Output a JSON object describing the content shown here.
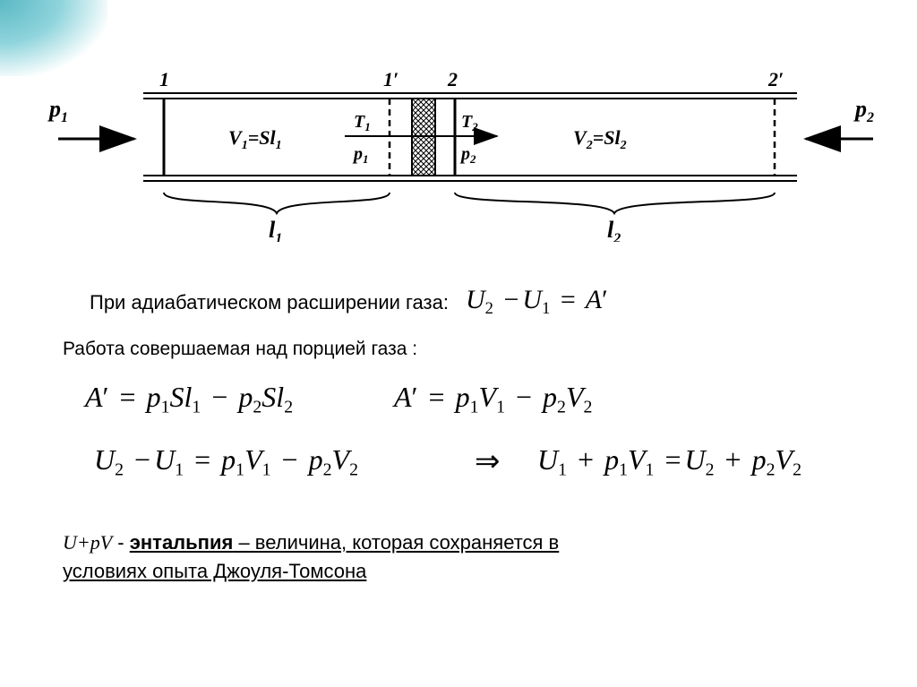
{
  "diagram": {
    "labels": {
      "p1": "p",
      "p1_sub": "1",
      "p2": "p",
      "p2_sub": "2",
      "pos1": "1",
      "pos1p": "1′",
      "pos2": "2",
      "pos2p": "2′",
      "v1": "V₁=Sl₁",
      "v2": "V₂=Sl₂",
      "T1": "T",
      "T1_sub": "1",
      "P1": "p",
      "P1_sub": "1",
      "T2": "T",
      "T2_sub": "2",
      "P2": "p",
      "P2_sub": "2",
      "l1": "l",
      "l1_sub": "1",
      "l2": "l",
      "l2_sub": "2"
    },
    "style": {
      "stroke": "#000000",
      "line_thin": 2,
      "line_thick": 3,
      "dash": "6,5",
      "hatch_color": "#000000",
      "bg": "#ffffff"
    }
  },
  "text": {
    "line1": "При адиабатическом расширении газа:",
    "line2": "Работа совершаемая над порцией газа :",
    "line3_pre": "U+pV",
    "line3_dash": "    - ",
    "line3_enth": "энтальпия",
    "line3_rest1": " – величина, которая сохраняется в",
    "line3_rest2": "условиях опыта Джоуля-Томсона"
  },
  "equations": {
    "eq_top": "U<sub>2</sub> <span class='op'>−</span>U<sub>1</sub> <span class='op'>=</span> A<span class='prime'>′</span>",
    "eq_a1": "A<span class='prime'>′</span> <span class='op'>=</span> p<sub>1</sub>Sl<sub>1</sub> <span class='op'>−</span> p<sub>2</sub>Sl<sub>2</sub>",
    "eq_a2": "A<span class='prime'>′</span> <span class='op'>=</span> p<sub>1</sub>V<sub>1</sub> <span class='op'>−</span> p<sub>2</sub>V<sub>2</sub>",
    "eq_b1": "U<sub>2</sub> <span class='op'>−</span>U<sub>1</sub> <span class='op'>=</span> p<sub>1</sub>V<sub>1</sub> <span class='op'>−</span> p<sub>2</sub>V<sub>2</sub>",
    "implies": "⇒",
    "eq_b2": "U<sub>1</sub> <span class='op'>+</span> p<sub>1</sub>V<sub>1</sub> <span class='op'>=</span>U<sub>2</sub> <span class='op'>+</span> p<sub>2</sub>V<sub>2</sub>"
  }
}
